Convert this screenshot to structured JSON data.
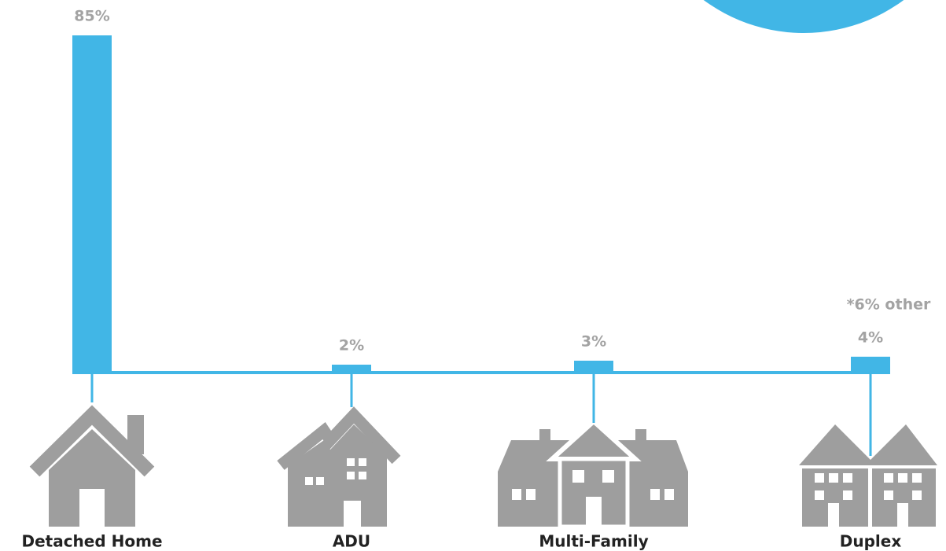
{
  "chart_data": {
    "type": "bar",
    "categories": [
      "Detached Home",
      "ADU",
      "Multi-Family",
      "Duplex"
    ],
    "values": [
      85,
      2,
      3,
      4
    ],
    "value_labels": [
      "85%",
      "2%",
      "3%",
      "4%"
    ],
    "annotation": "*6% other",
    "color": "#41b6e6",
    "ylim": [
      0,
      85
    ]
  }
}
